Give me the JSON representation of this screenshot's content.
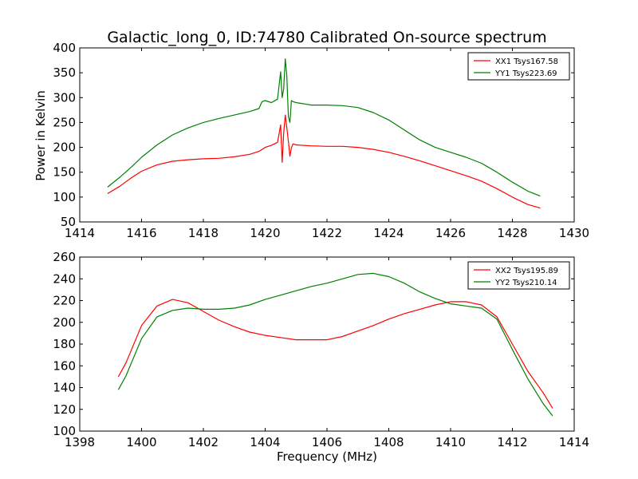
{
  "chart_data": [
    {
      "type": "line",
      "title": "Galactic_long_0, ID:74780 Calibrated On-source spectrum",
      "xlabel": "",
      "ylabel": "Power in Kelvin",
      "xlim": [
        1414,
        1430
      ],
      "ylim": [
        50,
        400
      ],
      "xticks": [
        1414,
        1416,
        1418,
        1420,
        1422,
        1424,
        1426,
        1428,
        1430
      ],
      "yticks": [
        50,
        100,
        150,
        200,
        250,
        300,
        350,
        400
      ],
      "grid": false,
      "legend_position": "top-right",
      "series": [
        {
          "name": "XX1 Tsys167.58",
          "color": "#ff0000",
          "x": [
            1414.9,
            1415.3,
            1415.7,
            1416.0,
            1416.5,
            1417.0,
            1417.5,
            1418.0,
            1418.5,
            1419.0,
            1419.5,
            1419.8,
            1420.0,
            1420.2,
            1420.4,
            1420.5,
            1420.55,
            1420.6,
            1420.65,
            1420.7,
            1420.75,
            1420.8,
            1420.85,
            1420.9,
            1421.0,
            1421.5,
            1422.0,
            1422.5,
            1423.0,
            1423.5,
            1424.0,
            1424.5,
            1425.0,
            1425.5,
            1426.0,
            1426.5,
            1427.0,
            1427.5,
            1428.0,
            1428.5,
            1428.9
          ],
          "y": [
            107,
            122,
            140,
            152,
            165,
            172,
            175,
            177,
            178,
            181,
            186,
            192,
            200,
            204,
            210,
            245,
            170,
            228,
            265,
            240,
            212,
            182,
            199,
            207,
            205,
            203,
            202,
            202,
            200,
            196,
            190,
            182,
            173,
            163,
            153,
            143,
            132,
            117,
            100,
            85,
            78
          ]
        },
        {
          "name": "YY1 Tsys223.69",
          "color": "#008000",
          "x": [
            1414.9,
            1415.3,
            1415.7,
            1416.0,
            1416.5,
            1417.0,
            1417.5,
            1418.0,
            1418.5,
            1419.0,
            1419.5,
            1419.8,
            1419.9,
            1420.0,
            1420.2,
            1420.4,
            1420.5,
            1420.55,
            1420.6,
            1420.65,
            1420.7,
            1420.75,
            1420.8,
            1420.85,
            1420.9,
            1421.0,
            1421.5,
            1422.0,
            1422.5,
            1423.0,
            1423.5,
            1424.0,
            1424.5,
            1425.0,
            1425.5,
            1426.0,
            1426.5,
            1427.0,
            1427.5,
            1428.0,
            1428.5,
            1428.9
          ],
          "y": [
            120,
            140,
            162,
            180,
            205,
            225,
            239,
            250,
            258,
            265,
            272,
            278,
            292,
            294,
            290,
            297,
            352,
            300,
            318,
            378,
            345,
            262,
            250,
            294,
            292,
            290,
            285,
            285,
            284,
            280,
            270,
            255,
            235,
            215,
            200,
            190,
            180,
            168,
            150,
            130,
            112,
            102
          ]
        }
      ]
    },
    {
      "type": "line",
      "title": "",
      "xlabel": "Frequency (MHz)",
      "ylabel": "",
      "xlim": [
        1398,
        1414
      ],
      "ylim": [
        100,
        260
      ],
      "xticks": [
        1398,
        1400,
        1402,
        1404,
        1406,
        1408,
        1410,
        1412,
        1414
      ],
      "yticks": [
        100,
        120,
        140,
        160,
        180,
        200,
        220,
        240,
        260
      ],
      "grid": false,
      "legend_position": "top-right",
      "series": [
        {
          "name": "XX2 Tsys195.89",
          "color": "#ff0000",
          "x": [
            1399.25,
            1399.5,
            1400.0,
            1400.5,
            1401.0,
            1401.5,
            1402.0,
            1402.5,
            1403.0,
            1403.5,
            1404.0,
            1404.5,
            1405.0,
            1405.5,
            1406.0,
            1406.5,
            1407.0,
            1407.5,
            1408.0,
            1408.5,
            1409.0,
            1409.5,
            1410.0,
            1410.5,
            1411.0,
            1411.5,
            1412.0,
            1412.5,
            1413.0,
            1413.3
          ],
          "y": [
            150,
            163,
            197,
            215,
            221,
            218,
            210,
            202,
            196,
            191,
            188,
            186,
            184,
            184,
            184,
            187,
            192,
            197,
            203,
            208,
            212,
            216,
            219,
            219,
            216,
            205,
            180,
            155,
            135,
            121
          ]
        },
        {
          "name": "YY2 Tsys210.14",
          "color": "#008000",
          "x": [
            1399.25,
            1399.5,
            1400.0,
            1400.5,
            1401.0,
            1401.5,
            1402.0,
            1402.5,
            1403.0,
            1403.5,
            1404.0,
            1404.5,
            1405.0,
            1405.5,
            1406.0,
            1406.5,
            1407.0,
            1407.5,
            1408.0,
            1408.5,
            1409.0,
            1409.5,
            1410.0,
            1410.5,
            1411.0,
            1411.5,
            1412.0,
            1412.5,
            1413.0,
            1413.3
          ],
          "y": [
            138,
            151,
            185,
            205,
            211,
            213,
            212,
            212,
            213,
            216,
            221,
            225,
            229,
            233,
            236,
            240,
            244,
            245,
            242,
            236,
            228,
            222,
            217,
            215,
            213,
            203,
            175,
            148,
            125,
            114
          ]
        }
      ]
    }
  ]
}
